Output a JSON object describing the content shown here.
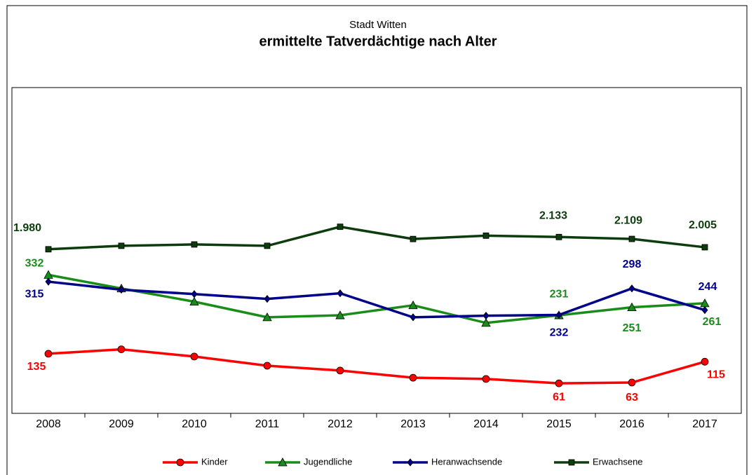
{
  "chart_data": {
    "type": "line",
    "subtitle": "Stadt Witten",
    "title": "ermittelte Tatverdächtige nach Alter",
    "categories": [
      "2008",
      "2009",
      "2010",
      "2011",
      "2012",
      "2013",
      "2014",
      "2015",
      "2016",
      "2017"
    ],
    "ylim": [
      0,
      800
    ],
    "y2lim": [
      0,
      4000
    ],
    "legend": "bottom",
    "series": [
      {
        "name": "Kinder",
        "color": "#ff0000",
        "marker": "circle",
        "values": [
          135,
          146,
          128,
          105,
          93,
          75,
          72,
          61,
          63,
          115
        ],
        "value_labels": [
          "135",
          null,
          null,
          null,
          null,
          null,
          null,
          "61",
          "63",
          "115"
        ]
      },
      {
        "name": "Jugendliche",
        "color": "#1a8c1a",
        "marker": "triangle",
        "values": [
          332,
          298,
          265,
          226,
          231,
          256,
          212,
          231,
          251,
          261
        ],
        "value_labels": [
          "332",
          null,
          null,
          null,
          null,
          null,
          null,
          "231",
          "251",
          "261"
        ]
      },
      {
        "name": "Heranwachsende",
        "color": "#00008b",
        "marker": "diamond",
        "values": [
          315,
          295,
          284,
          272,
          286,
          226,
          230,
          232,
          298,
          244
        ],
        "value_labels": [
          "315",
          null,
          null,
          null,
          null,
          null,
          null,
          "232",
          "298",
          "244"
        ]
      },
      {
        "name": "Erwachsene",
        "color": "#0d3d0d",
        "marker": "square",
        "axis": "y2",
        "values": [
          1980,
          2023,
          2040,
          2023,
          2261,
          2108,
          2150,
          2133,
          2109,
          2005
        ],
        "value_labels": [
          "1.980",
          null,
          null,
          null,
          null,
          null,
          null,
          "2.133",
          "2.109",
          "2.005"
        ]
      }
    ]
  }
}
